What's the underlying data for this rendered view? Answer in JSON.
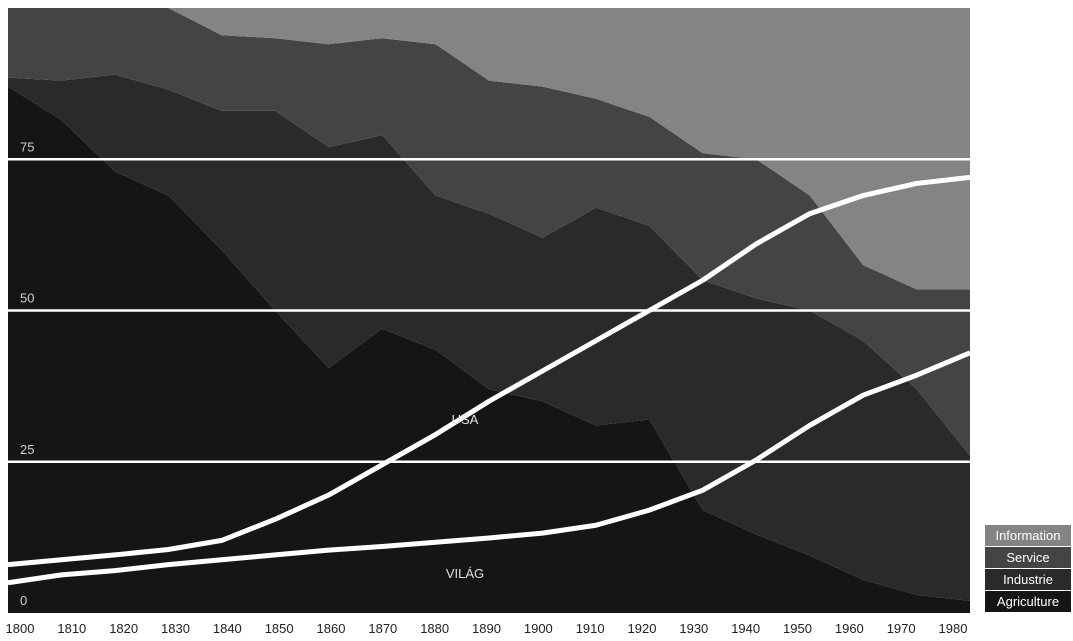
{
  "chart_data": {
    "type": "area",
    "stacked": true,
    "x": [
      1800,
      1810,
      1820,
      1830,
      1840,
      1850,
      1860,
      1870,
      1880,
      1890,
      1900,
      1910,
      1920,
      1930,
      1940,
      1950,
      1960,
      1970,
      1980
    ],
    "xlim": [
      1800,
      1980
    ],
    "ylim": [
      0,
      100
    ],
    "yticks": [
      0,
      25,
      50,
      75
    ],
    "grid": true,
    "legend": "bottom-right",
    "series": [
      {
        "name": "Agriculture",
        "color": "#151515",
        "values": [
          87,
          81.5,
          73,
          69,
          60,
          50,
          40.5,
          47,
          43.5,
          37,
          35,
          31,
          32,
          17,
          13,
          9.5,
          5.5,
          3,
          2
        ]
      },
      {
        "name": "Industrie",
        "color": "#2a2a2a",
        "values": [
          1.5,
          6.5,
          16,
          17.5,
          23,
          33,
          36.5,
          32,
          25.5,
          29,
          27,
          36,
          32,
          38,
          39,
          40.5,
          39.5,
          34,
          24
        ]
      },
      {
        "name": "Service",
        "color": "#444444",
        "values": [
          11.5,
          12,
          11,
          13.5,
          12.5,
          12,
          17,
          16,
          25,
          22,
          25,
          18,
          18,
          21,
          23,
          19,
          12.5,
          16.5,
          27.5
        ]
      },
      {
        "name": "Information",
        "color": "#848484",
        "values": [
          0,
          0,
          0,
          0,
          4.5,
          5,
          6,
          5,
          6,
          12,
          13,
          15,
          18,
          24,
          25,
          31,
          42.5,
          46.5,
          46.5
        ]
      }
    ],
    "lines": [
      {
        "name": "USA",
        "color": "#ffffff",
        "values": [
          8,
          8.8,
          9.6,
          10.5,
          12,
          15.5,
          19.5,
          24.5,
          29.5,
          35,
          40,
          45,
          50,
          55,
          61,
          66,
          69,
          71,
          72
        ]
      },
      {
        "name": "VILÁG",
        "color": "#ffffff",
        "values": [
          5,
          6.3,
          7,
          8,
          8.8,
          9.6,
          10.4,
          11,
          11.7,
          12.4,
          13.2,
          14.5,
          17,
          20.3,
          25.3,
          31,
          36,
          39.3,
          43
        ]
      }
    ]
  }
}
